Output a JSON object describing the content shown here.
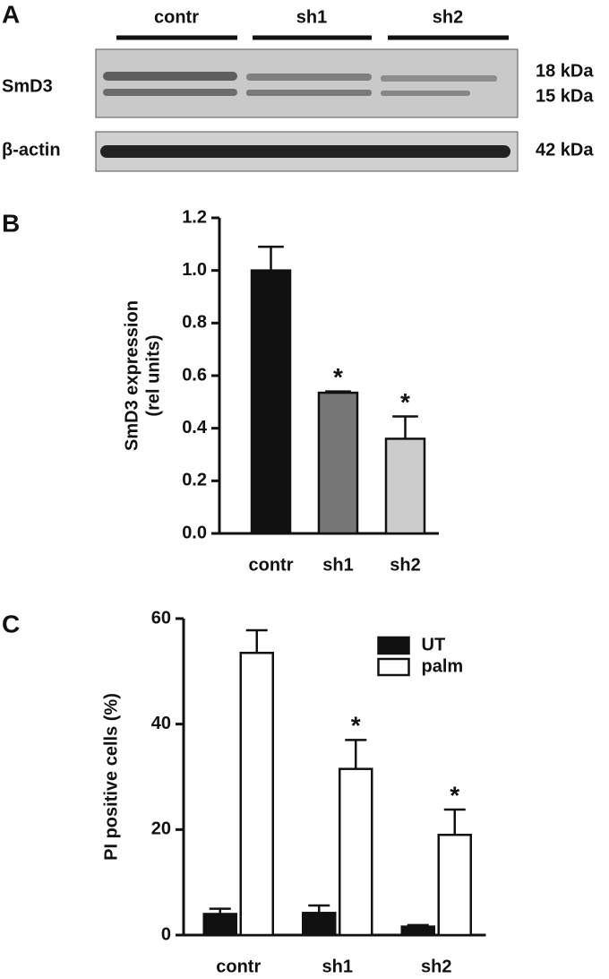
{
  "blot": {
    "panel": "A",
    "groups": [
      "contr",
      "sh1",
      "sh2"
    ],
    "rows": [
      {
        "label": "SmD3",
        "sizes": [
          "18 kDa",
          "15 kDa"
        ]
      },
      {
        "label": "β-actin",
        "sizes": [
          "42 kDa"
        ]
      }
    ]
  },
  "chart_data": [
    {
      "type": "bar",
      "panel": "B",
      "y_label": [
        "SmD3 expression",
        "(rel units)"
      ],
      "categories": [
        "contr",
        "sh1",
        "sh2"
      ],
      "values": [
        1.0,
        0.535,
        0.36
      ],
      "errors": [
        0.09,
        0.005,
        0.085
      ],
      "colors": [
        "#111111",
        "#777777",
        "#cccccc"
      ],
      "significance": [
        null,
        "*",
        "*"
      ],
      "ylim": [
        0,
        1.2
      ],
      "yticks": [
        {
          "value": 0,
          "label": "0.0"
        },
        0.2,
        0.4,
        0.6,
        0.8,
        {
          "value": 1,
          "label": "1.0"
        },
        1.2
      ]
    },
    {
      "type": "grouped_bar",
      "panel": "C",
      "y_label": [
        "PI positive cells (%)"
      ],
      "categories": [
        "contr",
        "sh1",
        "sh2"
      ],
      "series": [
        {
          "name": "UT",
          "color": "#111111",
          "values": [
            4,
            4.2,
            1.6
          ],
          "errors": [
            1,
            1.4,
            0.3
          ],
          "significance": [
            null,
            null,
            null
          ]
        },
        {
          "name": "palm",
          "color": "#ffffff",
          "values": [
            53.5,
            31.5,
            19
          ],
          "errors": [
            4.3,
            5.5,
            4.8
          ],
          "significance": [
            null,
            "*",
            "*"
          ]
        }
      ],
      "ylim": [
        0,
        60
      ],
      "yticks": [
        0,
        20,
        40,
        60
      ],
      "legend": "top-right"
    }
  ]
}
